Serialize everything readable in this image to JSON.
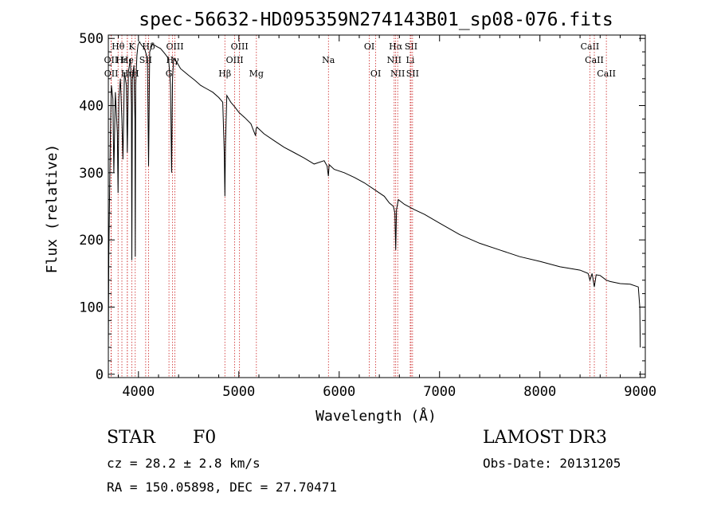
{
  "chart_data": {
    "type": "line",
    "title": "spec-56632-HD095359N274143B01_sp08-076.fits",
    "xlabel": "Wavelength (Å)",
    "ylabel": "Flux (relative)",
    "xlim": [
      3700,
      9050
    ],
    "ylim": [
      -5,
      505
    ],
    "xticks": [
      4000,
      5000,
      6000,
      7000,
      8000,
      9000
    ],
    "yticks": [
      0,
      100,
      200,
      300,
      400,
      500
    ],
    "xtick_labels": [
      "4000",
      "5000",
      "6000",
      "7000",
      "8000",
      "9000"
    ],
    "ytick_labels": [
      "0",
      "100",
      "200",
      "300",
      "400",
      "500"
    ],
    "grid": false,
    "series": [
      {
        "name": "spectrum",
        "color": "#000000",
        "x": [
          3700,
          3705,
          3720,
          3730,
          3745,
          3755,
          3770,
          3790,
          3797,
          3805,
          3820,
          3835,
          3845,
          3860,
          3880,
          3889,
          3900,
          3920,
          3930,
          3934,
          3940,
          3955,
          3965,
          3968,
          3972,
          3985,
          3995,
          4010,
          4030,
          4060,
          4090,
          4101,
          4112,
          4140,
          4180,
          4220,
          4260,
          4300,
          4320,
          4330,
          4340,
          4350,
          4380,
          4420,
          4460,
          4500,
          4560,
          4620,
          4680,
          4740,
          4800,
          4840,
          4855,
          4861,
          4867,
          4880,
          4920,
          4960,
          5000,
          5060,
          5120,
          5167,
          5172,
          5180,
          5250,
          5350,
          5450,
          5550,
          5650,
          5750,
          5850,
          5880,
          5892,
          5900,
          5950,
          6050,
          6150,
          6250,
          6350,
          6450,
          6500,
          6540,
          6555,
          6563,
          6571,
          6590,
          6650,
          6750,
          6850,
          7000,
          7200,
          7400,
          7600,
          7800,
          8000,
          8200,
          8400,
          8480,
          8498,
          8520,
          8542,
          8560,
          8600,
          8662,
          8700,
          8800,
          8900,
          8980,
          8995,
          9000
        ],
        "y": [
          40,
          180,
          350,
          430,
          410,
          300,
          420,
          360,
          270,
          410,
          440,
          380,
          320,
          450,
          430,
          330,
          450,
          470,
          400,
          170,
          440,
          460,
          380,
          175,
          430,
          475,
          490,
          495,
          490,
          485,
          470,
          310,
          480,
          492,
          488,
          485,
          478,
          470,
          430,
          300,
          440,
          470,
          465,
          455,
          450,
          445,
          438,
          430,
          425,
          420,
          412,
          405,
          330,
          265,
          340,
          415,
          405,
          398,
          390,
          382,
          373,
          355,
          365,
          368,
          358,
          348,
          338,
          330,
          322,
          313,
          318,
          310,
          295,
          312,
          305,
          300,
          293,
          285,
          275,
          265,
          255,
          250,
          240,
          185,
          245,
          260,
          253,
          245,
          238,
          225,
          208,
          195,
          185,
          175,
          168,
          160,
          155,
          150,
          140,
          150,
          130,
          148,
          147,
          140,
          138,
          135,
          134,
          130,
          100,
          40
        ]
      }
    ],
    "lines": [
      {
        "label": "OII",
        "x": 3727,
        "row": 2
      },
      {
        "label": "OII",
        "x": 3729,
        "row": 3
      },
      {
        "label": "Hθ",
        "x": 3797,
        "row": 1
      },
      {
        "label": "Hε",
        "x": 3835,
        "row": 2
      },
      {
        "label": "He",
        "x": 3889,
        "row": 2
      },
      {
        "label": "Hη",
        "x": 3889,
        "row": 3
      },
      {
        "label": "K",
        "x": 3934,
        "row": 1
      },
      {
        "label": "H",
        "x": 3968,
        "row": 3
      },
      {
        "label": "SII",
        "x": 4072,
        "row": 2
      },
      {
        "label": "Hδ",
        "x": 4101,
        "row": 1
      },
      {
        "label": "G",
        "x": 4304,
        "row": 3
      },
      {
        "label": "OIII",
        "x": 4363,
        "row": 1
      },
      {
        "label": "Hγ",
        "x": 4340,
        "row": 2
      },
      {
        "label": "Hβ",
        "x": 4861,
        "row": 3
      },
      {
        "label": "OIII",
        "x": 4959,
        "row": 2
      },
      {
        "label": "OIII",
        "x": 5007,
        "row": 1
      },
      {
        "label": "Mg",
        "x": 5175,
        "row": 3
      },
      {
        "label": "Na",
        "x": 5893,
        "row": 2
      },
      {
        "label": "OI",
        "x": 6300,
        "row": 1
      },
      {
        "label": "OI",
        "x": 6364,
        "row": 3
      },
      {
        "label": "NII",
        "x": 6548,
        "row": 2
      },
      {
        "label": "Hα",
        "x": 6563,
        "row": 1
      },
      {
        "label": "NII",
        "x": 6583,
        "row": 3
      },
      {
        "label": "Li",
        "x": 6708,
        "row": 2
      },
      {
        "label": "SII",
        "x": 6716,
        "row": 1
      },
      {
        "label": "SII",
        "x": 6731,
        "row": 3
      },
      {
        "label": "CaII",
        "x": 8498,
        "row": 1
      },
      {
        "label": "CaII",
        "x": 8542,
        "row": 2
      },
      {
        "label": "CaII",
        "x": 8662,
        "row": 3
      }
    ]
  },
  "info": {
    "object_class": "STAR",
    "subclass": "F0",
    "survey": "LAMOST DR3",
    "redshift": "cz = 28.2 ± 2.8 km/s",
    "obs_date": "Obs-Date: 20131205",
    "coords": "RA = 150.05898, DEC =  27.70471"
  }
}
